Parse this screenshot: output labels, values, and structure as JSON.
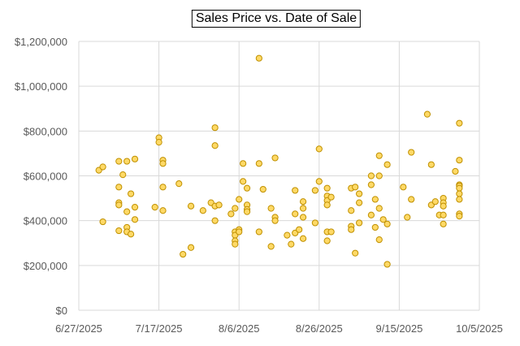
{
  "chart_data": {
    "type": "scatter",
    "title": "Sales Price vs. Date of Sale",
    "xlabel": "",
    "ylabel": "",
    "xlim": [
      "2025-06-27",
      "2025-10-05"
    ],
    "ylim": [
      0,
      1200000
    ],
    "x_ticks": [
      "6/27/2025",
      "7/17/2025",
      "8/6/2025",
      "8/26/2025",
      "9/15/2025",
      "10/5/2025"
    ],
    "y_ticks": [
      "$0",
      "$200,000",
      "$400,000",
      "$600,000",
      "$800,000",
      "$1,000,000",
      "$1,200,000"
    ],
    "grid": true,
    "legend": "none",
    "marker_fill": "#FFD966",
    "marker_stroke": "#BF9000",
    "points": [
      [
        "2025-07-02",
        625000
      ],
      [
        "2025-07-03",
        640000
      ],
      [
        "2025-07-03",
        395000
      ],
      [
        "2025-07-07",
        665000
      ],
      [
        "2025-07-07",
        550000
      ],
      [
        "2025-07-07",
        480000
      ],
      [
        "2025-07-07",
        470000
      ],
      [
        "2025-07-07",
        355000
      ],
      [
        "2025-07-08",
        605000
      ],
      [
        "2025-07-09",
        665000
      ],
      [
        "2025-07-09",
        440000
      ],
      [
        "2025-07-09",
        370000
      ],
      [
        "2025-07-09",
        350000
      ],
      [
        "2025-07-10",
        520000
      ],
      [
        "2025-07-10",
        340000
      ],
      [
        "2025-07-11",
        675000
      ],
      [
        "2025-07-11",
        460000
      ],
      [
        "2025-07-11",
        405000
      ],
      [
        "2025-07-16",
        460000
      ],
      [
        "2025-07-17",
        770000
      ],
      [
        "2025-07-17",
        750000
      ],
      [
        "2025-07-18",
        670000
      ],
      [
        "2025-07-18",
        655000
      ],
      [
        "2025-07-18",
        550000
      ],
      [
        "2025-07-18",
        445000
      ],
      [
        "2025-07-22",
        565000
      ],
      [
        "2025-07-23",
        250000
      ],
      [
        "2025-07-25",
        465000
      ],
      [
        "2025-07-25",
        280000
      ],
      [
        "2025-07-28",
        445000
      ],
      [
        "2025-07-30",
        480000
      ],
      [
        "2025-07-31",
        815000
      ],
      [
        "2025-07-31",
        735000
      ],
      [
        "2025-07-31",
        465000
      ],
      [
        "2025-07-31",
        400000
      ],
      [
        "2025-08-01",
        470000
      ],
      [
        "2025-08-04",
        430000
      ],
      [
        "2025-08-05",
        455000
      ],
      [
        "2025-08-05",
        350000
      ],
      [
        "2025-08-05",
        335000
      ],
      [
        "2025-08-05",
        310000
      ],
      [
        "2025-08-05",
        295000
      ],
      [
        "2025-08-06",
        495000
      ],
      [
        "2025-08-06",
        360000
      ],
      [
        "2025-08-06",
        350000
      ],
      [
        "2025-08-07",
        655000
      ],
      [
        "2025-08-07",
        575000
      ],
      [
        "2025-08-08",
        545000
      ],
      [
        "2025-08-08",
        470000
      ],
      [
        "2025-08-08",
        450000
      ],
      [
        "2025-08-08",
        440000
      ],
      [
        "2025-08-11",
        1125000
      ],
      [
        "2025-08-11",
        655000
      ],
      [
        "2025-08-11",
        350000
      ],
      [
        "2025-08-12",
        540000
      ],
      [
        "2025-08-14",
        455000
      ],
      [
        "2025-08-14",
        285000
      ],
      [
        "2025-08-15",
        680000
      ],
      [
        "2025-08-15",
        415000
      ],
      [
        "2025-08-15",
        400000
      ],
      [
        "2025-08-18",
        335000
      ],
      [
        "2025-08-19",
        295000
      ],
      [
        "2025-08-20",
        535000
      ],
      [
        "2025-08-20",
        430000
      ],
      [
        "2025-08-20",
        345000
      ],
      [
        "2025-08-21",
        360000
      ],
      [
        "2025-08-22",
        485000
      ],
      [
        "2025-08-22",
        455000
      ],
      [
        "2025-08-22",
        415000
      ],
      [
        "2025-08-22",
        320000
      ],
      [
        "2025-08-25",
        535000
      ],
      [
        "2025-08-25",
        390000
      ],
      [
        "2025-08-26",
        720000
      ],
      [
        "2025-08-26",
        575000
      ],
      [
        "2025-08-28",
        545000
      ],
      [
        "2025-08-28",
        510000
      ],
      [
        "2025-08-28",
        490000
      ],
      [
        "2025-08-28",
        470000
      ],
      [
        "2025-08-28",
        350000
      ],
      [
        "2025-08-28",
        310000
      ],
      [
        "2025-08-29",
        505000
      ],
      [
        "2025-08-29",
        350000
      ],
      [
        "2025-09-03",
        545000
      ],
      [
        "2025-09-03",
        445000
      ],
      [
        "2025-09-03",
        375000
      ],
      [
        "2025-09-03",
        360000
      ],
      [
        "2025-09-04",
        550000
      ],
      [
        "2025-09-04",
        255000
      ],
      [
        "2025-09-05",
        520000
      ],
      [
        "2025-09-05",
        480000
      ],
      [
        "2025-09-05",
        390000
      ],
      [
        "2025-09-08",
        600000
      ],
      [
        "2025-09-08",
        560000
      ],
      [
        "2025-09-08",
        425000
      ],
      [
        "2025-09-09",
        495000
      ],
      [
        "2025-09-09",
        370000
      ],
      [
        "2025-09-10",
        690000
      ],
      [
        "2025-09-10",
        600000
      ],
      [
        "2025-09-10",
        455000
      ],
      [
        "2025-09-10",
        315000
      ],
      [
        "2025-09-11",
        405000
      ],
      [
        "2025-09-12",
        650000
      ],
      [
        "2025-09-12",
        385000
      ],
      [
        "2025-09-12",
        205000
      ],
      [
        "2025-09-16",
        550000
      ],
      [
        "2025-09-17",
        415000
      ],
      [
        "2025-09-18",
        705000
      ],
      [
        "2025-09-18",
        495000
      ],
      [
        "2025-09-22",
        875000
      ],
      [
        "2025-09-23",
        650000
      ],
      [
        "2025-09-23",
        470000
      ],
      [
        "2025-09-24",
        485000
      ],
      [
        "2025-09-25",
        425000
      ],
      [
        "2025-09-26",
        500000
      ],
      [
        "2025-09-26",
        480000
      ],
      [
        "2025-09-26",
        465000
      ],
      [
        "2025-09-26",
        425000
      ],
      [
        "2025-09-26",
        385000
      ],
      [
        "2025-09-29",
        620000
      ],
      [
        "2025-09-30",
        835000
      ],
      [
        "2025-09-30",
        670000
      ],
      [
        "2025-09-30",
        560000
      ],
      [
        "2025-09-30",
        555000
      ],
      [
        "2025-09-30",
        545000
      ],
      [
        "2025-09-30",
        520000
      ],
      [
        "2025-09-30",
        495000
      ],
      [
        "2025-09-30",
        430000
      ],
      [
        "2025-09-30",
        420000
      ]
    ]
  }
}
